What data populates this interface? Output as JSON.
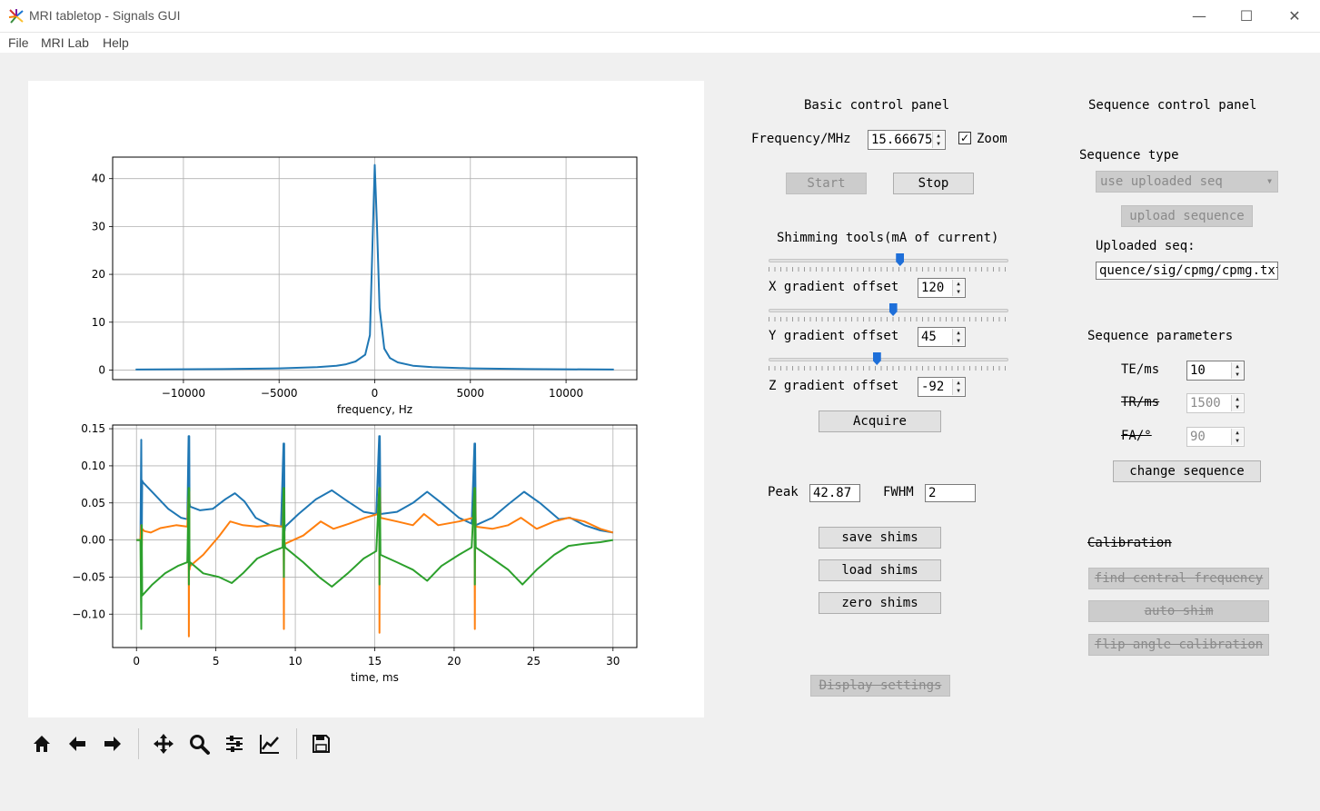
{
  "window": {
    "title": "MRI tabletop - Signals GUI",
    "minimize_glyph": "—",
    "maximize_glyph": "☐",
    "close_glyph": "✕"
  },
  "menu": [
    "File",
    "MRI Lab",
    "Help"
  ],
  "basic_panel": {
    "title": "Basic control panel",
    "frequency_label": "Frequency/MHz",
    "frequency_value": "15.66675",
    "zoom_label": "Zoom",
    "zoom_checked": true,
    "start_label": "Start",
    "stop_label": "Stop",
    "shim_title": "Shimming tools(mA of current)",
    "x_label": "X gradient offset",
    "x_value": "120",
    "x_slider_level": 0.55,
    "y_label": "Y gradient offset",
    "y_value": "45",
    "y_slider_level": 0.52,
    "z_label": "Z gradient offset",
    "z_value": "-92",
    "z_slider_level": 0.45,
    "acquire_label": "Acquire",
    "peak_label": "Peak",
    "peak_value": "42.87",
    "fwhm_label": "FWHM",
    "fwhm_value": "2",
    "save_shims": "save shims",
    "load_shims": "load shims",
    "zero_shims": "zero shims",
    "display_settings": "Display settings"
  },
  "sequence_panel": {
    "title": "Sequence control panel",
    "type_label": "Sequence type",
    "type_value": "use uploaded seq",
    "upload_label": "upload sequence",
    "uploaded_label": "Uploaded seq:",
    "uploaded_value": "quence/sig/cpmg/cpmg.txt",
    "params_title": "Sequence parameters",
    "te_label": "TE/ms",
    "te_value": "10",
    "tr_label": "TR/ms",
    "tr_value": "1500",
    "fa_label": "FA/°",
    "fa_value": "90",
    "change_label": "change sequence",
    "calibration_title": "Calibration",
    "find_freq": "find central frequency",
    "auto_shim": "auto shim",
    "flip_cal": "flip angle calibration"
  },
  "toolbar_icons": [
    "home-icon",
    "back-arrow-icon",
    "forward-arrow-icon",
    "pan-icon",
    "zoom-icon",
    "subplots-config-icon",
    "axes-edit-icon",
    "save-figure-icon"
  ],
  "colors": {
    "c0": "#1f77b4",
    "c1": "#ff7f0e",
    "c2": "#2ca02c",
    "slider_handle": "#1e6fd9"
  },
  "chart_data": [
    {
      "type": "line",
      "xlabel": "frequency, Hz",
      "xlim": [
        -13700,
        13700
      ],
      "ylim": [
        -2,
        44.5
      ],
      "xticks": [
        -10000,
        -5000,
        0,
        5000,
        10000
      ],
      "xtick_labels": [
        "−10000",
        "−5000",
        "0",
        "5000",
        "10000"
      ],
      "yticks": [
        0,
        10,
        20,
        30,
        40
      ],
      "ytick_labels": [
        "0",
        "10",
        "20",
        "30",
        "40"
      ],
      "grid": true,
      "series": [
        {
          "color": "#1f77b4",
          "x": [
            -12500,
            -8000,
            -5000,
            -3000,
            -2000,
            -1500,
            -1000,
            -500,
            -250,
            0,
            120,
            250,
            500,
            800,
            1200,
            2000,
            3000,
            5000,
            8000,
            12500
          ],
          "y": [
            0.1,
            0.2,
            0.35,
            0.6,
            0.9,
            1.2,
            1.8,
            3.2,
            7.3,
            42.87,
            30,
            13,
            4.5,
            2.5,
            1.6,
            0.9,
            0.6,
            0.35,
            0.2,
            0.1
          ]
        }
      ]
    },
    {
      "type": "line",
      "xlabel": "time, ms",
      "xlim": [
        -1.5,
        31.5
      ],
      "ylim": [
        -0.145,
        0.155
      ],
      "xticks": [
        0,
        5,
        10,
        15,
        20,
        25,
        30
      ],
      "xtick_labels": [
        "0",
        "5",
        "10",
        "15",
        "20",
        "25",
        "30"
      ],
      "yticks": [
        -0.1,
        -0.05,
        0.0,
        0.05,
        0.1,
        0.15
      ],
      "ytick_labels": [
        "−0.10",
        "−0.05",
        "0.00",
        "0.05",
        "0.10",
        "0.15"
      ],
      "grid": true,
      "series": [
        {
          "color": "#1f77b4",
          "x": [
            0,
            0.25,
            0.3,
            0.33,
            0.36,
            0.4,
            1.2,
            2.0,
            2.8,
            3.2,
            3.28,
            3.3,
            3.32,
            3.34,
            3.38,
            4.0,
            4.8,
            5.6,
            6.2,
            6.8,
            7.5,
            8.4,
            9.1,
            9.26,
            9.28,
            9.3,
            9.32,
            9.36,
            10.2,
            11.3,
            12.3,
            13.3,
            14.3,
            15.1,
            15.28,
            15.3,
            15.32,
            15.36,
            16.4,
            17.4,
            18.3,
            19.2,
            20.3,
            21.1,
            21.28,
            21.3,
            21.32,
            21.36,
            22.4,
            23.4,
            24.4,
            25.4,
            26.6,
            27.3,
            28.2,
            29.2,
            30
          ],
          "y": [
            0,
            0,
            0.135,
            -0.01,
            0.08,
            0.078,
            0.06,
            0.042,
            0.03,
            0.028,
            0.14,
            -0.03,
            0.14,
            0.05,
            0.045,
            0.04,
            0.042,
            0.055,
            0.063,
            0.052,
            0.03,
            0.02,
            0.018,
            0.13,
            -0.03,
            0.13,
            0.012,
            0.018,
            0.035,
            0.055,
            0.067,
            0.052,
            0.038,
            0.035,
            0.14,
            -0.03,
            0.14,
            0.035,
            0.038,
            0.05,
            0.065,
            0.05,
            0.03,
            0.022,
            0.13,
            -0.03,
            0.13,
            0.02,
            0.03,
            0.048,
            0.065,
            0.05,
            0.028,
            0.03,
            0.02,
            0.013,
            0.01
          ]
        },
        {
          "color": "#ff7f0e",
          "x": [
            0,
            0.25,
            0.3,
            0.33,
            0.36,
            0.5,
            0.9,
            1.5,
            2.5,
            3.2,
            3.28,
            3.3,
            3.32,
            3.34,
            3.38,
            4.2,
            5.2,
            5.9,
            6.7,
            7.6,
            8.5,
            9.2,
            9.26,
            9.28,
            9.3,
            9.32,
            9.36,
            10.5,
            11.6,
            12.4,
            13.4,
            14.4,
            15.2,
            15.28,
            15.3,
            15.32,
            15.36,
            16.4,
            17.4,
            18.1,
            19.0,
            20.3,
            21.2,
            21.28,
            21.3,
            21.32,
            21.36,
            22.4,
            23.4,
            24.2,
            25.2,
            26.3,
            27.2,
            28.2,
            29.2,
            30
          ],
          "y": [
            0,
            0,
            0.02,
            -0.01,
            0.015,
            0.012,
            0.01,
            0.016,
            0.02,
            0.018,
            0.065,
            -0.13,
            0.065,
            -0.04,
            -0.035,
            -0.02,
            0.005,
            0.025,
            0.02,
            0.018,
            0.02,
            0.018,
            0.06,
            -0.12,
            0.06,
            -0.01,
            -0.005,
            0.006,
            0.025,
            0.015,
            0.022,
            0.03,
            0.035,
            0.07,
            -0.125,
            0.07,
            0.03,
            0.025,
            0.02,
            0.035,
            0.02,
            0.025,
            0.03,
            0.07,
            -0.12,
            0.07,
            0.018,
            0.015,
            0.02,
            0.03,
            0.015,
            0.025,
            0.03,
            0.025,
            0.015,
            0.01
          ]
        },
        {
          "color": "#2ca02c",
          "x": [
            0,
            0.25,
            0.3,
            0.33,
            0.36,
            1.0,
            1.8,
            2.6,
            3.2,
            3.28,
            3.3,
            3.32,
            3.34,
            3.38,
            4.2,
            5.2,
            6.0,
            6.7,
            7.6,
            8.6,
            9.2,
            9.26,
            9.28,
            9.3,
            9.32,
            9.36,
            10.5,
            11.5,
            12.3,
            13.3,
            14.3,
            15.1,
            15.28,
            15.3,
            15.32,
            15.36,
            16.4,
            17.4,
            18.3,
            19.2,
            20.3,
            21.1,
            21.28,
            21.3,
            21.32,
            21.36,
            22.4,
            23.4,
            24.3,
            25.2,
            26.3,
            27.2,
            28.2,
            29.2,
            30
          ],
          "y": [
            0,
            0,
            -0.12,
            0.02,
            -0.075,
            -0.06,
            -0.045,
            -0.035,
            -0.03,
            0.07,
            -0.06,
            0.07,
            -0.035,
            -0.03,
            -0.045,
            -0.05,
            -0.058,
            -0.045,
            -0.025,
            -0.015,
            -0.01,
            0.07,
            -0.05,
            0.07,
            -0.005,
            -0.01,
            -0.03,
            -0.05,
            -0.063,
            -0.045,
            -0.025,
            -0.015,
            0.07,
            -0.06,
            0.07,
            -0.02,
            -0.03,
            -0.04,
            -0.055,
            -0.035,
            -0.02,
            -0.01,
            0.07,
            -0.06,
            0.07,
            -0.01,
            -0.025,
            -0.04,
            -0.06,
            -0.04,
            -0.02,
            -0.008,
            -0.005,
            -0.003,
            0
          ]
        }
      ]
    }
  ]
}
